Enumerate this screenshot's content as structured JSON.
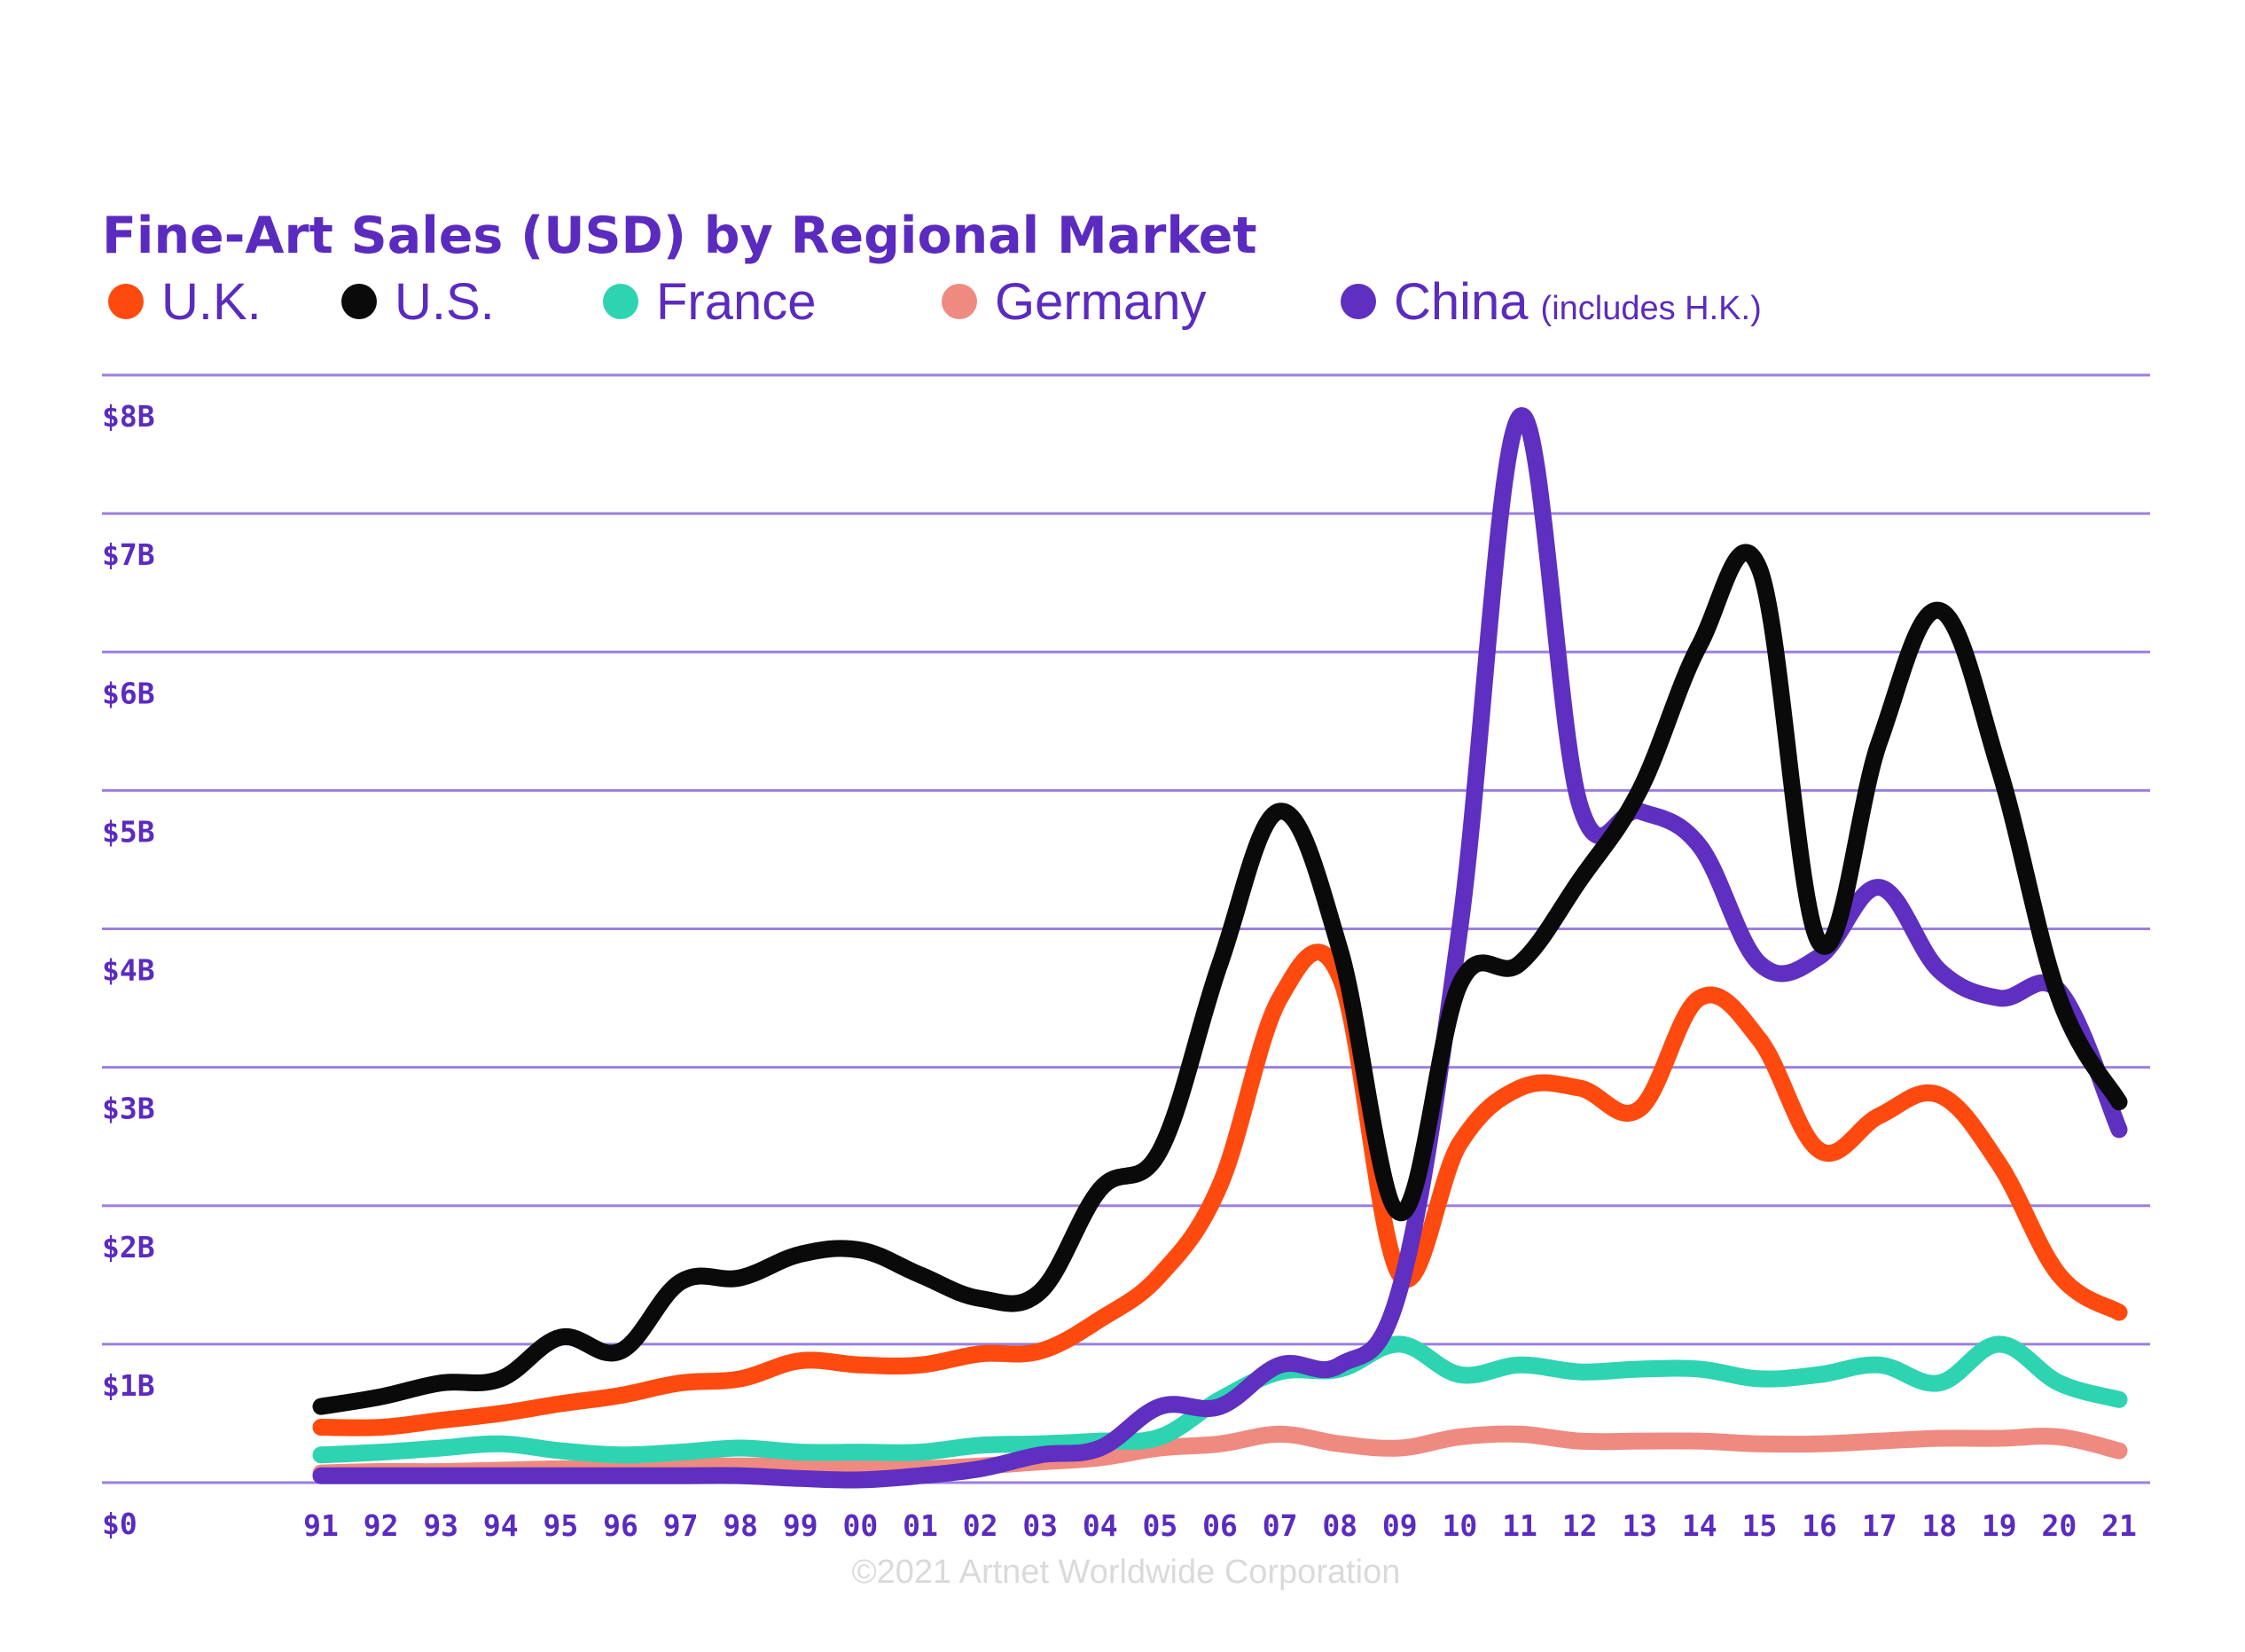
{
  "colors": {
    "accent": "#5B2BBF",
    "grid": "#9B7FE0",
    "uk": "#FF4A0F",
    "us": "#0A0A0A",
    "france": "#2ED3B2",
    "germany": "#EF8A80",
    "china": "#5E2FC0",
    "credit": "#DADADA"
  },
  "legend_note": "(includes H.K.)",
  "credit": "©2021 Artnet Worldwide Corporation",
  "chart_data": {
    "type": "line",
    "title": "Fine-Art Sales (USD) by Regional Market",
    "x": [
      "91",
      "92",
      "93",
      "94",
      "95",
      "96",
      "97",
      "98",
      "99",
      "00",
      "01",
      "02",
      "03",
      "04",
      "05",
      "06",
      "07",
      "08",
      "09",
      "10",
      "11",
      "12",
      "13",
      "14",
      "15",
      "16",
      "17",
      "18",
      "19",
      "20",
      "21"
    ],
    "y_ticks": [
      "$0",
      "$1B",
      "$2B",
      "$3B",
      "$4B",
      "$5B",
      "$6B",
      "$7B",
      "$8B"
    ],
    "ylim": [
      0,
      8
    ],
    "yunit": "billions USD",
    "grid": true,
    "legend_position": "top-left",
    "series": [
      {
        "name": "U.K.",
        "key": "uk",
        "values": [
          0.4,
          0.4,
          0.45,
          0.5,
          0.57,
          0.63,
          0.72,
          0.75,
          0.88,
          0.85,
          0.85,
          0.93,
          0.95,
          1.18,
          1.5,
          2.15,
          3.5,
          3.65,
          1.5,
          2.45,
          2.85,
          2.85,
          2.7,
          3.5,
          3.2,
          2.4,
          2.65,
          2.8,
          2.3,
          1.5,
          1.23
        ]
      },
      {
        "name": "U.S.",
        "key": "us",
        "values": [
          0.55,
          0.62,
          0.72,
          0.75,
          1.05,
          0.95,
          1.45,
          1.48,
          1.65,
          1.68,
          1.5,
          1.33,
          1.38,
          2.12,
          2.4,
          3.75,
          4.85,
          3.85,
          1.95,
          3.6,
          3.75,
          4.35,
          5.0,
          6.05,
          6.6,
          3.9,
          5.35,
          6.3,
          5.15,
          3.5,
          2.75
        ]
      },
      {
        "name": "France",
        "key": "france",
        "values": [
          0.2,
          0.22,
          0.25,
          0.28,
          0.23,
          0.2,
          0.22,
          0.25,
          0.22,
          0.22,
          0.22,
          0.27,
          0.28,
          0.3,
          0.33,
          0.6,
          0.8,
          0.82,
          1.0,
          0.78,
          0.85,
          0.8,
          0.82,
          0.82,
          0.75,
          0.78,
          0.85,
          0.72,
          1.0,
          0.72,
          0.6
        ]
      },
      {
        "name": "Germany",
        "key": "germany",
        "values": [
          0.07,
          0.08,
          0.08,
          0.09,
          0.1,
          0.1,
          0.12,
          0.12,
          0.12,
          0.1,
          0.1,
          0.12,
          0.15,
          0.18,
          0.25,
          0.28,
          0.35,
          0.28,
          0.25,
          0.33,
          0.35,
          0.3,
          0.3,
          0.3,
          0.28,
          0.28,
          0.3,
          0.32,
          0.32,
          0.33,
          0.23
        ]
      },
      {
        "name": "China",
        "key": "china",
        "values": [
          0.05,
          0.05,
          0.05,
          0.05,
          0.05,
          0.05,
          0.05,
          0.05,
          0.03,
          0.02,
          0.05,
          0.1,
          0.2,
          0.25,
          0.55,
          0.55,
          0.85,
          0.85,
          1.4,
          4.0,
          7.7,
          4.9,
          4.85,
          4.6,
          3.75,
          3.8,
          4.3,
          3.7,
          3.5,
          3.55,
          2.55
        ]
      }
    ]
  }
}
